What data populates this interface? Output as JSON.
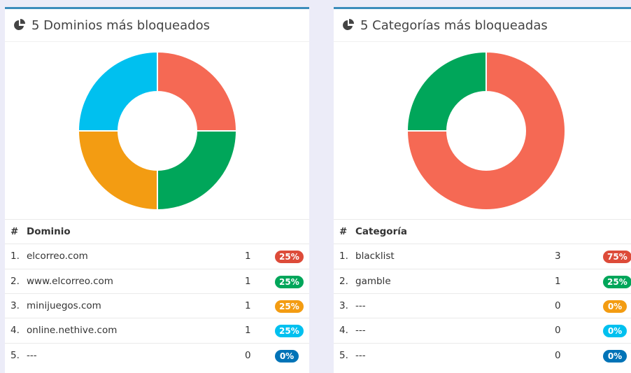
{
  "panels": [
    {
      "title": "5 Dominios más bloqueados",
      "columns": [
        "#",
        "Dominio"
      ],
      "rows": [
        {
          "rank": "1.",
          "name": "elcorreo.com",
          "count": 1,
          "percent": "25%",
          "color": "#f56954",
          "badge_color": "#dd4b39"
        },
        {
          "rank": "2.",
          "name": "www.elcorreo.com",
          "count": 1,
          "percent": "25%",
          "color": "#00a65a",
          "badge_color": "#00a65a"
        },
        {
          "rank": "3.",
          "name": "minijuegos.com",
          "count": 1,
          "percent": "25%",
          "color": "#f39c12",
          "badge_color": "#f39c12"
        },
        {
          "rank": "4.",
          "name": "online.nethive.com",
          "count": 1,
          "percent": "25%",
          "color": "#00c0ef",
          "badge_color": "#00c0ef"
        },
        {
          "rank": "5.",
          "name": "---",
          "count": 0,
          "percent": "0%",
          "color": "#0073b7",
          "badge_color": "#0073b7"
        }
      ]
    },
    {
      "title": "5 Categorías más bloqueadas",
      "columns": [
        "#",
        "Categoría"
      ],
      "rows": [
        {
          "rank": "1.",
          "name": "blacklist",
          "count": 3,
          "percent": "75%",
          "color": "#f56954",
          "badge_color": "#dd4b39"
        },
        {
          "rank": "2.",
          "name": "gamble",
          "count": 1,
          "percent": "25%",
          "color": "#00a65a",
          "badge_color": "#00a65a"
        },
        {
          "rank": "3.",
          "name": "---",
          "count": 0,
          "percent": "0%",
          "color": "#f39c12",
          "badge_color": "#f39c12"
        },
        {
          "rank": "4.",
          "name": "---",
          "count": 0,
          "percent": "0%",
          "color": "#00c0ef",
          "badge_color": "#00c0ef"
        },
        {
          "rank": "5.",
          "name": "---",
          "count": 0,
          "percent": "0%",
          "color": "#0073b7",
          "badge_color": "#0073b7"
        }
      ]
    }
  ]
}
